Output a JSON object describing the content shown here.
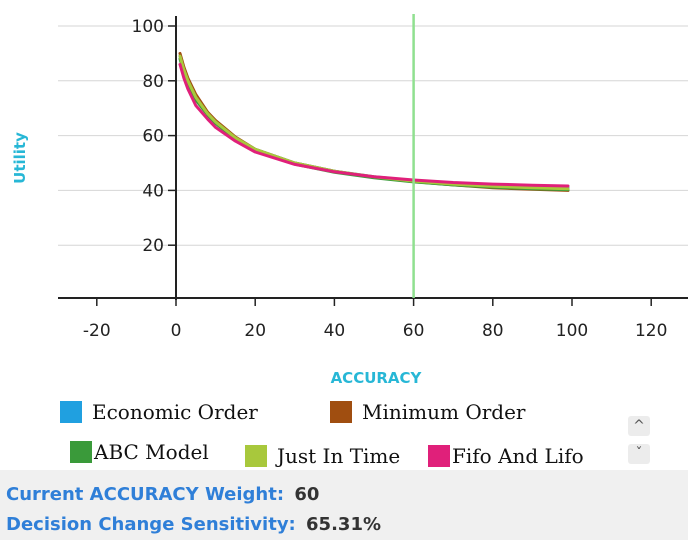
{
  "chart_data": {
    "type": "line",
    "xlabel": "ACCURACY",
    "ylabel": "Utility",
    "xlim": [
      -30,
      130
    ],
    "ylim": [
      0,
      112
    ],
    "x_ticks": [
      -20,
      0,
      20,
      40,
      60,
      80,
      100,
      120
    ],
    "y_ticks": [
      20,
      40,
      60,
      80,
      100
    ],
    "grid": "horizontal",
    "marker_line": {
      "x": 60,
      "color": "#90e090"
    },
    "x": [
      1,
      2,
      3,
      5,
      8,
      10,
      15,
      20,
      30,
      40,
      50,
      60,
      70,
      80,
      90,
      99
    ],
    "series": [
      {
        "name": "Economic Order",
        "color": "#20a0e0",
        "values": [
          89,
          84,
          80,
          74,
          68,
          65,
          59,
          55,
          50,
          47,
          45,
          43.5,
          42.5,
          41.8,
          41.3,
          41
        ]
      },
      {
        "name": "Minimum Order",
        "color": "#a04e10",
        "values": [
          90,
          85,
          81,
          75,
          68.5,
          65.5,
          59.5,
          55,
          50,
          47,
          44.8,
          43.2,
          42,
          41,
          40.4,
          40
        ]
      },
      {
        "name": "ABC Model",
        "color": "#3a9a3a",
        "values": [
          88,
          83,
          79,
          73,
          67.5,
          64.5,
          58.8,
          54.6,
          49.6,
          46.6,
          44.6,
          43.1,
          42,
          41.2,
          40.6,
          40.3
        ]
      },
      {
        "name": "Just In Time",
        "color": "#a8c83c",
        "values": [
          89,
          84,
          80,
          74,
          68,
          65,
          59.2,
          55,
          50,
          47,
          45,
          43.4,
          42.3,
          41.5,
          41,
          40.6
        ]
      },
      {
        "name": "Fifo And Lifo",
        "color": "#e0207a",
        "values": [
          86,
          81,
          77,
          71,
          66,
          63,
          58,
          54,
          49.5,
          46.8,
          45,
          43.8,
          42.9,
          42.3,
          41.9,
          41.6
        ]
      }
    ]
  },
  "legend": {
    "items": [
      {
        "label": "Economic Order",
        "color": "#20a0e0"
      },
      {
        "label": "Minimum Order",
        "color": "#a04e10"
      },
      {
        "label": "ABC Model",
        "color": "#3a9a3a"
      },
      {
        "label": "Just In Time",
        "color": "#a8c83c"
      },
      {
        "label": "Fifo And Lifo",
        "color": "#e0207a"
      }
    ]
  },
  "scroller": {
    "up_icon": "chevron-up-icon",
    "down_icon": "chevron-down-icon",
    "up_glyph": "^",
    "down_glyph": "ˇ"
  },
  "info": {
    "weight_label": "Current ACCURACY Weight:",
    "weight_value": "60",
    "sensitivity_label": "Decision Change Sensitivity:",
    "sensitivity_value": "65.31%"
  }
}
